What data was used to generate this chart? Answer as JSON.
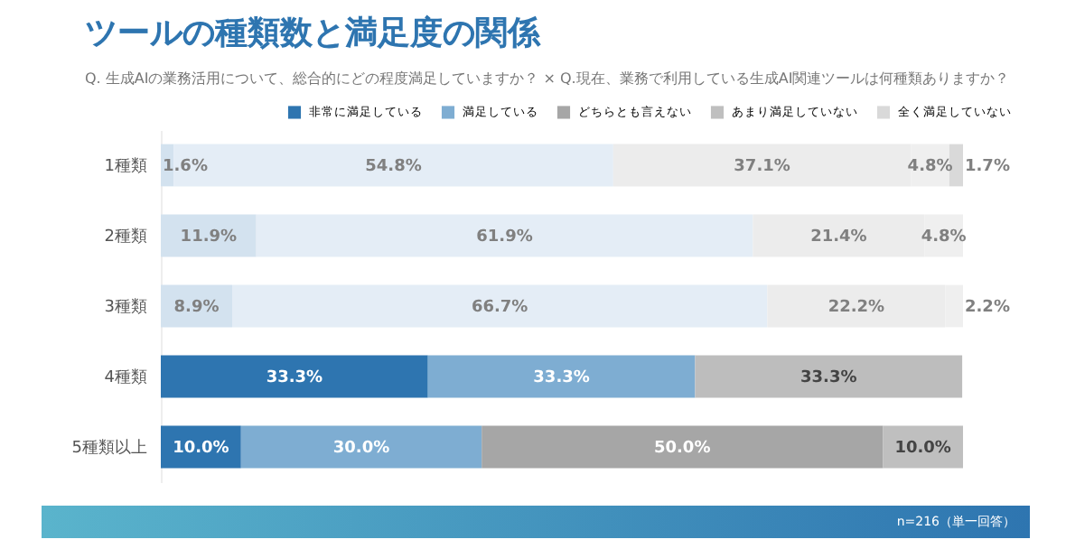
{
  "chart_data": {
    "type": "bar",
    "orientation": "horizontal",
    "stacked": true,
    "title": "ツールの種類数と満足度の関係",
    "subtitle": "Q. 生成AIの業務活用について、総合的にどの程度満足していますか？ × Q.現在、業務で利用している生成AI関連ツールは何種類ありますか？",
    "categories": [
      "1種類",
      "2種類",
      "3種類",
      "4種類",
      "5種類以上"
    ],
    "series": [
      {
        "name": "非常に満足している",
        "color": "#2e75b0",
        "colors": [
          "#d3e2ef",
          "#d3e2ef",
          "#d3e2ef",
          "#2e75b0",
          "#2e75b0"
        ],
        "values": [
          1.6,
          11.9,
          8.9,
          33.3,
          10.0
        ],
        "value_labels": [
          "1.6%",
          "11.9%",
          "8.9%",
          "33.3%",
          "10.0%"
        ]
      },
      {
        "name": "満足している",
        "color": "#7eadd2",
        "colors": [
          "#e4edf6",
          "#e4edf6",
          "#e4edf6",
          "#7eadd2",
          "#7eadd2"
        ],
        "values": [
          54.8,
          61.9,
          66.7,
          33.3,
          30.0
        ],
        "value_labels": [
          "54.8%",
          "61.9%",
          "66.7%",
          "33.3%",
          "30.0%"
        ]
      },
      {
        "name": "どちらとも言えない",
        "color": "#a6a6a6",
        "colors": [
          "#ececec",
          "#ececec",
          "#ececec",
          "#bdbdbd",
          "#a6a6a6"
        ],
        "values": [
          37.1,
          21.4,
          22.2,
          33.3,
          50.0
        ],
        "value_labels": [
          "37.1%",
          "21.4%",
          "22.2%",
          "33.3%",
          "50.0%"
        ]
      },
      {
        "name": "あまり満足していない",
        "color": "#bfbfbf",
        "colors": [
          "#efefef",
          "#efefef",
          "#efefef",
          null,
          "#bfbfbf"
        ],
        "values": [
          4.8,
          4.8,
          2.2,
          null,
          10.0
        ],
        "value_labels": [
          "4.8%",
          "4.8%",
          "2.2%",
          null,
          "10.0%"
        ]
      },
      {
        "name": "全く満足していない",
        "color": "#d9d9d9",
        "colors": [
          "#d9d9d9",
          null,
          null,
          null,
          null
        ],
        "values": [
          1.7,
          null,
          null,
          null,
          null
        ],
        "value_labels": [
          "1.7%",
          null,
          null,
          null,
          null
        ]
      }
    ],
    "legend": "top right",
    "grid": false,
    "annotations": [
      "n=216（単一回答）"
    ]
  }
}
